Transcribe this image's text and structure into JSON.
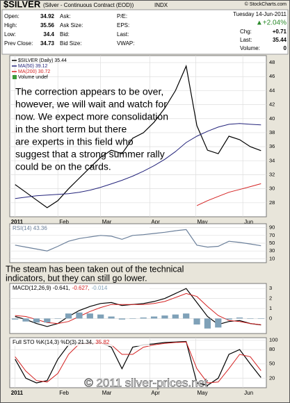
{
  "header": {
    "symbol": "$SILVER",
    "description": "(Silver - Continuous Contract (EOD))",
    "exchange": "INDX",
    "source": "© StockCharts.com",
    "date": "Tuesday 14-Jun-2011",
    "change_pct": "▲+2.04%",
    "quote": [
      [
        {
          "label": "Open:",
          "value": 34.92
        },
        {
          "label": "Ask:"
        },
        {
          "label": "P/E:"
        }
      ],
      [
        {
          "label": "High:",
          "value": 35.56
        },
        {
          "label": "Ask Size:"
        },
        {
          "label": "EPS:"
        }
      ],
      [
        {
          "label": "Low:",
          "value": 34.4
        },
        {
          "label": "Bid:"
        },
        {
          "label": "Last:"
        }
      ],
      [
        {
          "label": "Prev Close:",
          "value": 34.73
        },
        {
          "label": "Bid Size:"
        },
        {
          "label": "VWAP:"
        }
      ]
    ],
    "summary": [
      {
        "label": "Chg:",
        "value": "+0.71"
      },
      {
        "label": "Last:",
        "value": 35.44
      },
      {
        "label": "Volume:",
        "value": 0
      }
    ]
  },
  "watermark": "© 2011 silver-prices.net",
  "chart_data": [
    {
      "type": "line",
      "x": [
        0,
        1,
        2,
        3,
        4,
        5,
        6,
        7,
        8,
        9,
        10,
        11,
        12,
        13,
        14,
        15,
        16,
        17,
        18,
        19,
        20,
        21,
        22,
        23
      ],
      "xlim": [
        -0.5,
        23.5
      ],
      "xticks": [
        {
          "value": 0,
          "label": "2011"
        },
        {
          "value": 4,
          "label": "Feb"
        },
        {
          "value": 8,
          "label": "Mar"
        },
        {
          "value": 12.6,
          "label": "Apr"
        },
        {
          "value": 16.9,
          "label": "May"
        },
        {
          "value": 21.3,
          "label": "Jun"
        }
      ],
      "ylim": [
        26,
        49
      ],
      "yticks": [
        28,
        30,
        32,
        34,
        36,
        38,
        40,
        42,
        44,
        46,
        48
      ],
      "grid": true,
      "series": [
        {
          "name": "$SILVER (Daily) 35.44",
          "color": "#000000",
          "values": [
            30.6,
            29.5,
            28.4,
            27.3,
            28.3,
            30.0,
            31.5,
            33.0,
            34.5,
            35.5,
            35.0,
            37.2,
            38.0,
            39.5,
            41.5,
            44.0,
            47.5,
            39.0,
            35.5,
            35.0,
            37.5,
            37.0,
            36.0,
            35.44
          ]
        },
        {
          "name": "MA(50) 39.12",
          "color": "#22227a",
          "values": [
            28.6,
            28.8,
            29.0,
            29.1,
            29.2,
            29.3,
            29.5,
            29.8,
            30.2,
            30.7,
            31.2,
            31.8,
            32.5,
            33.3,
            34.2,
            35.3,
            36.6,
            37.5,
            38.2,
            38.8,
            39.2,
            39.3,
            39.2,
            39.12
          ]
        },
        {
          "name": "MA(200) 30.72",
          "color": "#d42020",
          "values": [
            null,
            null,
            null,
            null,
            null,
            null,
            null,
            null,
            null,
            null,
            null,
            null,
            null,
            null,
            null,
            null,
            null,
            27.6,
            28.3,
            28.9,
            29.5,
            29.9,
            30.3,
            30.72
          ]
        }
      ],
      "legend_extra": "Volume undef",
      "annotation": [
        "The correction appears to be over,",
        "however, we will wait and watch for",
        "now. We expect more consolidation",
        "in the short term but there",
        "are experts in this field who",
        "suggest that a strong summer rally",
        "could be on the cards."
      ]
    },
    {
      "type": "line",
      "x": [
        0,
        1,
        2,
        3,
        4,
        5,
        6,
        7,
        8,
        9,
        10,
        11,
        12,
        13,
        14,
        15,
        16,
        17,
        18,
        19,
        20,
        21,
        22,
        23
      ],
      "xlim": [
        -0.5,
        23.5
      ],
      "ylim": [
        0,
        100
      ],
      "yticks": [
        10,
        30,
        50,
        70,
        90
      ],
      "grid": true,
      "series": [
        {
          "name": "RSI(14) 43.36",
          "color": "#6a7f9a",
          "values": [
            45,
            40,
            35,
            30,
            42,
            55,
            62,
            66,
            70,
            68,
            60,
            70,
            72,
            75,
            78,
            82,
            85,
            45,
            40,
            42,
            55,
            52,
            48,
            43.36
          ]
        }
      ],
      "annotation": [
        "The steam has been taken out of the technical",
        "indicators, but they can still go lower."
      ]
    },
    {
      "type": "line",
      "x": [
        0,
        1,
        2,
        3,
        4,
        5,
        6,
        7,
        8,
        9,
        10,
        11,
        12,
        13,
        14,
        15,
        16,
        17,
        18,
        19,
        20,
        21,
        22,
        23
      ],
      "xlim": [
        -0.5,
        23.5
      ],
      "ylim": [
        -1.5,
        3.5
      ],
      "yticks": [
        0,
        1,
        2,
        3
      ],
      "grid": true,
      "series": [
        {
          "name": "MACD(12,26,9) -0.641,",
          "color": "#000000",
          "values": [
            0.2,
            -0.1,
            -0.5,
            -0.8,
            -0.5,
            0.2,
            0.8,
            1.2,
            1.5,
            1.6,
            1.3,
            1.4,
            1.5,
            1.7,
            2.0,
            2.5,
            3.0,
            1.6,
            0.2,
            -0.6,
            -0.3,
            -0.2,
            -0.5,
            -0.641
          ]
        },
        {
          "name": "-0.627,",
          "color": "#d42020",
          "values": [
            0.3,
            0.2,
            -0.1,
            -0.4,
            -0.5,
            -0.3,
            0.2,
            0.7,
            1.1,
            1.4,
            1.4,
            1.4,
            1.4,
            1.5,
            1.7,
            2.1,
            2.5,
            2.2,
            1.2,
            0.3,
            -0.2,
            -0.3,
            -0.5,
            -0.627
          ]
        },
        {
          "name": "-0.014",
          "color": "#7fa1b8",
          "type": "bar",
          "values": [
            -0.1,
            -0.3,
            -0.4,
            -0.4,
            0,
            0.5,
            0.6,
            0.5,
            0.4,
            0.2,
            -0.1,
            0,
            0.1,
            0.2,
            0.3,
            0.4,
            0.5,
            -0.6,
            -1.0,
            -0.9,
            -0.1,
            0.1,
            0,
            -0.014
          ]
        }
      ]
    },
    {
      "type": "line",
      "x": [
        0,
        1,
        2,
        3,
        4,
        5,
        6,
        7,
        8,
        9,
        10,
        11,
        12,
        13,
        14,
        15,
        16,
        17,
        18,
        19,
        20,
        21,
        22,
        23
      ],
      "xlim": [
        -0.5,
        23.5
      ],
      "xticks": [
        {
          "value": 0,
          "label": "2011"
        },
        {
          "value": 4,
          "label": "Feb"
        },
        {
          "value": 8,
          "label": "Mar"
        },
        {
          "value": 12.6,
          "label": "Apr"
        },
        {
          "value": 16.9,
          "label": "May"
        },
        {
          "value": 21.3,
          "label": "Jun"
        }
      ],
      "ylim": [
        0,
        105
      ],
      "yticks": [
        20,
        50,
        80,
        100
      ],
      "grid": true,
      "series": [
        {
          "name": "Full STO %K(14,3) %D(3) 21.34,",
          "color": "#000000",
          "values": [
            60,
            20,
            10,
            15,
            60,
            90,
            95,
            92,
            95,
            85,
            40,
            85,
            90,
            92,
            95,
            96,
            97,
            10,
            5,
            20,
            70,
            80,
            50,
            21.34
          ]
        },
        {
          "name": "35.82",
          "color": "#d42020",
          "values": [
            65,
            35,
            15,
            12,
            30,
            70,
            92,
            93,
            94,
            90,
            70,
            70,
            85,
            90,
            93,
            95,
            96,
            40,
            10,
            12,
            40,
            70,
            65,
            35.82
          ]
        }
      ]
    }
  ]
}
